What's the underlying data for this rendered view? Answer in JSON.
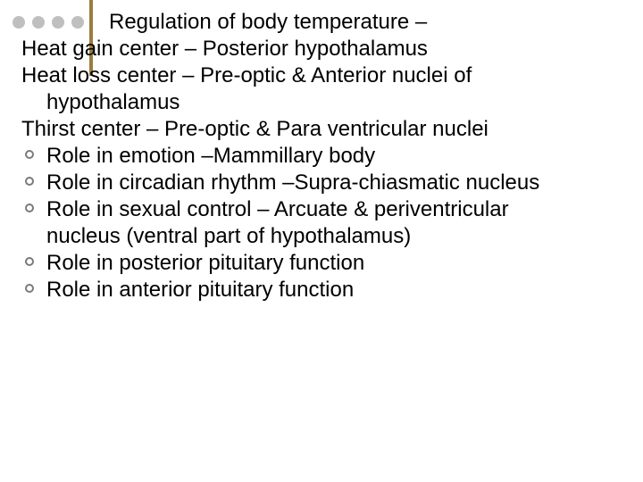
{
  "slide": {
    "text_color": "#000000",
    "background_color": "#ffffff",
    "font_size": 24,
    "deco_dot_color": "#bfbfbf",
    "deco_line_color": "#9a7c3f",
    "bullet_ring_color": "#7a7a7a",
    "lines": {
      "l0": "Regulation of body temperature –",
      "l1": "Heat gain center – Posterior hypothalamus",
      "l2": "Heat loss center – Pre-optic & Anterior nuclei of",
      "l2b": "hypothalamus",
      "l3": "Thirst center – Pre-optic & Para ventricular nuclei",
      "b1": "Role in emotion –Mammillary body",
      "b2": "Role in circadian rhythm –Supra-chiasmatic nucleus",
      "b3": "Role in sexual control – Arcuate & periventricular",
      "b3b": "nucleus (ventral part of hypothalamus)",
      "b4": "Role in posterior pituitary function",
      "b5": "Role in anterior pituitary function"
    }
  }
}
